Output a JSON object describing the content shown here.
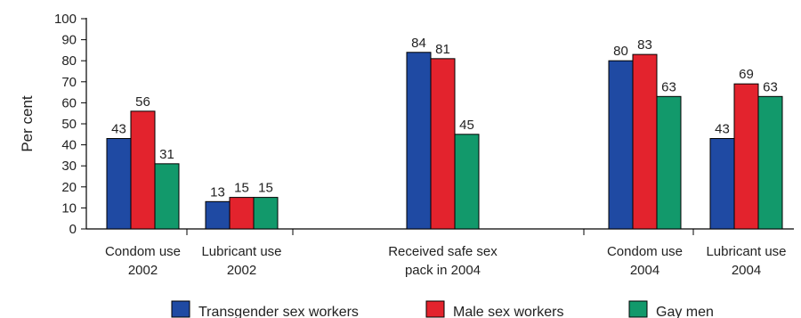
{
  "chart_data": {
    "type": "bar",
    "title": "",
    "xlabel": "",
    "ylabel": "Per cent",
    "ylim": [
      0,
      100
    ],
    "yticks": [
      0,
      10,
      20,
      30,
      40,
      50,
      60,
      70,
      80,
      90,
      100
    ],
    "grid": false,
    "legend_position": "bottom",
    "categories": [
      [
        "Condom use",
        "2002"
      ],
      [
        "Lubricant use",
        "2002"
      ],
      [
        "Received safe sex",
        "pack in 2004"
      ],
      [
        "Condom use",
        "2004"
      ],
      [
        "Lubricant use",
        "2004"
      ]
    ],
    "series": [
      {
        "name": "Transgender sex workers",
        "color": "#1f4aa3",
        "values": [
          43,
          13,
          84,
          80,
          43
        ]
      },
      {
        "name": "Male sex workers",
        "color": "#e3232d",
        "values": [
          56,
          15,
          81,
          83,
          69
        ]
      },
      {
        "name": "Gay men",
        "color": "#12996b",
        "values": [
          31,
          15,
          45,
          63,
          63
        ]
      }
    ]
  }
}
